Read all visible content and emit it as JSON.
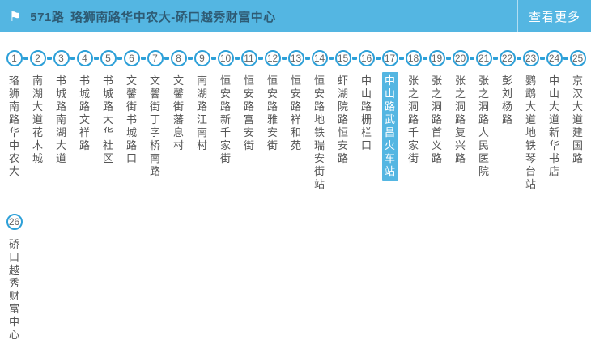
{
  "header": {
    "route_number": "571路",
    "route_name": "珞狮南路华中农大-硚口越秀财富中心",
    "more_label": "查看更多"
  },
  "icons": {
    "flag": "⚑"
  },
  "colors": {
    "header_bg": "#54b6e2",
    "header_text": "#2e5b74",
    "accent_blue": "#2da0d8",
    "highlight_bg": "#54b6e2",
    "stop_text": "#555555",
    "stop_number": "#666666"
  },
  "route": {
    "highlighted_stop": 17,
    "row_break_after": 25,
    "stops": [
      {
        "num": 1,
        "name": "珞狮南路华中农大"
      },
      {
        "num": 2,
        "name": "南湖大道花木城"
      },
      {
        "num": 3,
        "name": "书城路南湖大道"
      },
      {
        "num": 4,
        "name": "书城路文祥路"
      },
      {
        "num": 5,
        "name": "书城路大华社区"
      },
      {
        "num": 6,
        "name": "文馨街书城路口"
      },
      {
        "num": 7,
        "name": "文馨街丁字桥南路"
      },
      {
        "num": 8,
        "name": "文馨街藩息村"
      },
      {
        "num": 9,
        "name": "南湖路江南村"
      },
      {
        "num": 10,
        "name": "恒安路新千家街"
      },
      {
        "num": 11,
        "name": "恒安路富安街"
      },
      {
        "num": 12,
        "name": "恒安路雅安街"
      },
      {
        "num": 13,
        "name": "恒安路祥和苑"
      },
      {
        "num": 14,
        "name": "恒安路地铁瑞安街站"
      },
      {
        "num": 15,
        "name": "虾湖院路恒安路"
      },
      {
        "num": 16,
        "name": "中山路栅栏口"
      },
      {
        "num": 17,
        "name": "中山路武昌火车站"
      },
      {
        "num": 18,
        "name": "张之洞路千家街"
      },
      {
        "num": 19,
        "name": "张之洞路首义路"
      },
      {
        "num": 20,
        "name": "张之洞路复兴路"
      },
      {
        "num": 21,
        "name": "张之洞路人民医院"
      },
      {
        "num": 22,
        "name": "彭刘杨路"
      },
      {
        "num": 23,
        "name": "鹦鹉大道地铁琴台站"
      },
      {
        "num": 24,
        "name": "中山大道新华书店"
      },
      {
        "num": 25,
        "name": "京汉大道建国路"
      },
      {
        "num": 26,
        "name": "硚口越秀财富中心"
      }
    ]
  }
}
